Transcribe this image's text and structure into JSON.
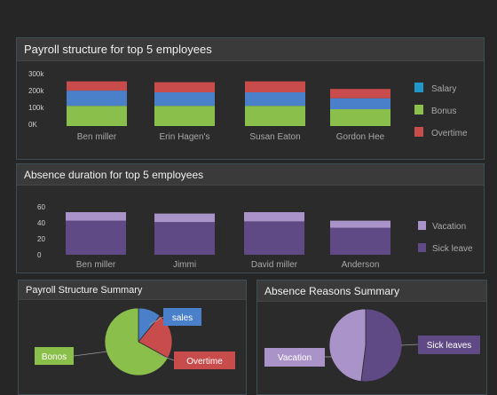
{
  "panels": {
    "payroll_title": "Payroll structure for top 5 employees",
    "absence_title": "Absence duration for  top 5 employees",
    "payroll_summary_title": "Payroll Structure Summary",
    "absence_summary_title": "Absence Reasons Summary"
  },
  "colors": {
    "salary": "#4a7fc9",
    "bonus": "#8bbf4c",
    "overtime": "#c94c4c",
    "vacation": "#a993c8",
    "sick_leave": "#5f4a86",
    "legend_salary": "#1f97c9"
  },
  "chart_data": [
    {
      "type": "bar",
      "stacked": true,
      "categories": [
        "Ben miller",
        "Erin Hagen's",
        "Susan Eaton",
        "Gordon Hee"
      ],
      "ytick_labels": [
        "300k",
        "200k",
        "100k",
        "0K"
      ],
      "ylim": [
        0,
        300000
      ],
      "series": [
        {
          "name": "Salary",
          "values": [
            90000,
            80000,
            80000,
            65000
          ]
        },
        {
          "name": "Bonus",
          "values": [
            120000,
            120000,
            120000,
            100000
          ]
        },
        {
          "name": "Overtime",
          "values": [
            55000,
            60000,
            65000,
            55000
          ]
        }
      ],
      "legend_position": "right"
    },
    {
      "type": "bar",
      "stacked": true,
      "categories": [
        "Ben miller",
        "Jimmi",
        "David miller",
        "Anderson"
      ],
      "ytick_labels": [
        "60",
        "40",
        "20",
        "0"
      ],
      "ylim": [
        0,
        65
      ],
      "series": [
        {
          "name": "Sick leave",
          "values": [
            48,
            46,
            47,
            38
          ]
        },
        {
          "name": "Vacation",
          "values": [
            12,
            12,
            13,
            10
          ]
        }
      ],
      "legend_position": "right"
    },
    {
      "type": "pie",
      "slices": [
        {
          "label": "sales",
          "value": 11
        },
        {
          "label": "Overtime",
          "value": 22
        },
        {
          "label": "Bonos",
          "value": 67
        }
      ]
    },
    {
      "type": "pie",
      "slices": [
        {
          "label": "Sick leaves",
          "value": 52
        },
        {
          "label": "Vacation",
          "value": 48
        }
      ]
    }
  ]
}
